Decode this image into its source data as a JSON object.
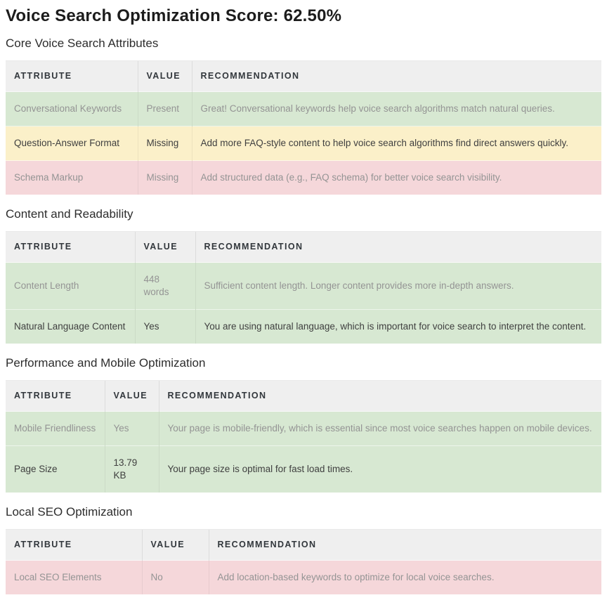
{
  "page": {
    "title": "Voice Search Optimization Score: 62.50%"
  },
  "colors": {
    "header_bg": "#efefef",
    "good_row_bg": "#d7e8d2",
    "warning_row_bg": "#fbf0c9",
    "error_row_bg": "#f5d7da",
    "light_row_text": "#949494",
    "dark_row_text": "#3f3f3f",
    "header_text": "#32373c"
  },
  "sections": [
    {
      "heading": "Core Voice Search Attributes",
      "columns": [
        "ATTRIBUTE",
        "VALUE",
        "RECOMMENDATION"
      ],
      "rows": [
        {
          "attribute": "Conversational Keywords",
          "value": "Present",
          "recommendation": "Great! Conversational keywords help voice search algorithms match natural queries.",
          "status": "good"
        },
        {
          "attribute": "Question-Answer Format",
          "value": "Missing",
          "recommendation": "Add more FAQ-style content to help voice search algorithms find direct answers quickly.",
          "status": "warning"
        },
        {
          "attribute": "Schema Markup",
          "value": "Missing",
          "recommendation": "Add structured data (e.g., FAQ schema) for better voice search visibility.",
          "status": "error"
        }
      ]
    },
    {
      "heading": "Content and Readability",
      "columns": [
        "ATTRIBUTE",
        "VALUE",
        "RECOMMENDATION"
      ],
      "rows": [
        {
          "attribute": "Content Length",
          "value": "448 words",
          "recommendation": "Sufficient content length. Longer content provides more in-depth answers.",
          "status": "good"
        },
        {
          "attribute": "Natural Language Content",
          "value": "Yes",
          "recommendation": "You are using natural language, which is important for voice search to interpret the content.",
          "status": "good"
        }
      ]
    },
    {
      "heading": "Performance and Mobile Optimization",
      "columns": [
        "ATTRIBUTE",
        "VALUE",
        "RECOMMENDATION"
      ],
      "rows": [
        {
          "attribute": "Mobile Friendliness",
          "value": "Yes",
          "recommendation": "Your page is mobile-friendly, which is essential since most voice searches happen on mobile devices.",
          "status": "good"
        },
        {
          "attribute": "Page Size",
          "value": "13.79 KB",
          "recommendation": "Your page size is optimal for fast load times.",
          "status": "good"
        }
      ]
    },
    {
      "heading": "Local SEO Optimization",
      "columns": [
        "ATTRIBUTE",
        "VALUE",
        "RECOMMENDATION"
      ],
      "rows": [
        {
          "attribute": "Local SEO Elements",
          "value": "No",
          "recommendation": "Add location-based keywords to optimize for local voice searches.",
          "status": "error"
        }
      ]
    }
  ]
}
